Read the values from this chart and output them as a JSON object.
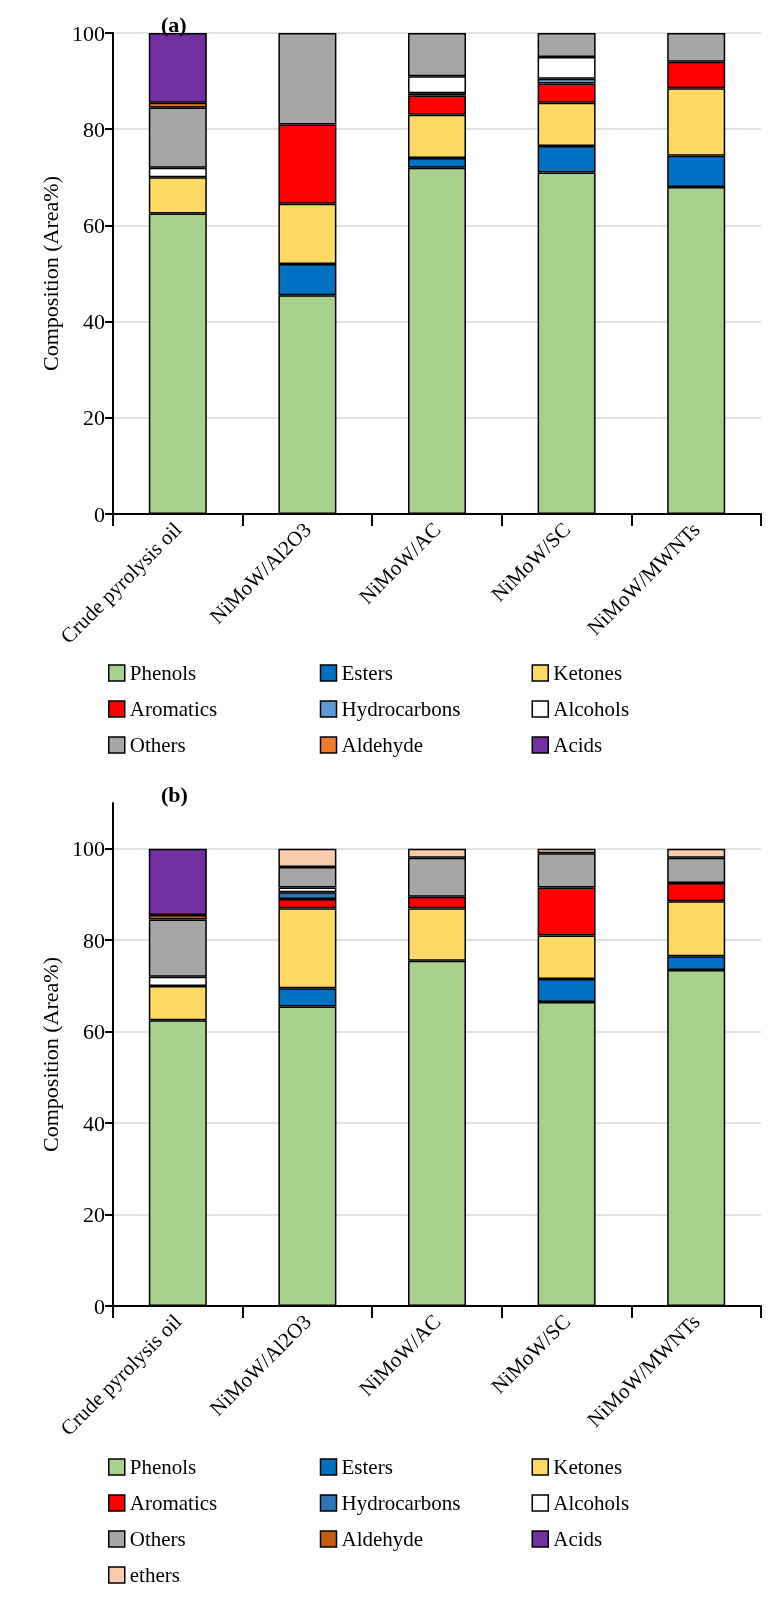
{
  "chart_data": [
    {
      "type": "bar",
      "title": "(a)",
      "ylabel": "Composition (Area%)",
      "categories": [
        "Crude pyrolysis oil",
        "NiMoW/Al2O3",
        "NiMoW/AC",
        "NiMoW/SC",
        "NiMoW/MWNTs"
      ],
      "stacked": true,
      "ylim": [
        0,
        100
      ],
      "yticks": [
        0,
        20,
        40,
        60,
        80,
        100
      ],
      "grid": "y",
      "legend": "bottom",
      "series": [
        {
          "name": "Phenols",
          "color": "#a9d18e",
          "values": [
            62.5,
            45.5,
            72,
            71,
            68
          ]
        },
        {
          "name": "Esters",
          "color": "#0070c0",
          "values": [
            0,
            6.5,
            2,
            5.5,
            6.5
          ]
        },
        {
          "name": "Ketones",
          "color": "#ffd966",
          "values": [
            7.5,
            12.5,
            9,
            9,
            14
          ]
        },
        {
          "name": "Aromatics",
          "color": "#ff0000",
          "values": [
            0,
            16.5,
            4,
            4,
            5.5
          ]
        },
        {
          "name": "Hydrocarbons",
          "color": "#5b9bd5",
          "values": [
            0,
            0,
            0.5,
            1,
            0
          ]
        },
        {
          "name": "Alcohols",
          "color": "#ffffff",
          "values": [
            2,
            0,
            3.5,
            4.5,
            0
          ]
        },
        {
          "name": "Others",
          "color": "#a6a6a6",
          "values": [
            12.5,
            19,
            9,
            5,
            6
          ]
        },
        {
          "name": "Aldehyde",
          "color": "#ed7d31",
          "values": [
            1,
            0,
            0,
            0,
            0
          ]
        },
        {
          "name": "Acids",
          "color": "#7030a0",
          "values": [
            14.5,
            0,
            0,
            0,
            0
          ]
        }
      ]
    },
    {
      "type": "bar",
      "title": "(b)",
      "ylabel": "Composition (Area%)",
      "categories": [
        "Crude pyrolysis oil",
        "NiMoW/Al2O3",
        "NiMoW/AC",
        "NiMoW/SC",
        "NiMoW/MWNTs"
      ],
      "stacked": true,
      "ylim": [
        0,
        110
      ],
      "yticks": [
        0,
        20,
        40,
        60,
        80,
        100
      ],
      "grid": "y",
      "legend": "bottom",
      "series": [
        {
          "name": "Phenols",
          "color": "#a9d18e",
          "values": [
            62.5,
            65.5,
            75.5,
            66.5,
            73.5
          ]
        },
        {
          "name": "Esters",
          "color": "#0070c0",
          "values": [
            0,
            4,
            0,
            5,
            3
          ]
        },
        {
          "name": "Ketones",
          "color": "#ffd966",
          "values": [
            7.5,
            17.5,
            11.5,
            9.5,
            12
          ]
        },
        {
          "name": "Aromatics",
          "color": "#ff0000",
          "values": [
            0,
            2,
            2.5,
            10.5,
            4
          ]
        },
        {
          "name": "Hydrocarbons",
          "color": "#2e75b6",
          "values": [
            0,
            1.5,
            0,
            0,
            0
          ]
        },
        {
          "name": "Alcohols",
          "color": "#ffffff",
          "values": [
            2,
            1,
            0,
            0,
            0
          ]
        },
        {
          "name": "Others",
          "color": "#a6a6a6",
          "values": [
            12.5,
            4.5,
            8.5,
            7.5,
            5.5
          ]
        },
        {
          "name": "Aldehyde",
          "color": "#c55a11",
          "values": [
            1,
            0,
            0,
            0,
            0
          ]
        },
        {
          "name": "Acids",
          "color": "#7030a0",
          "values": [
            14.5,
            0,
            0,
            0,
            0
          ]
        },
        {
          "name": "ethers",
          "color": "#f8cbad",
          "values": [
            0,
            4,
            2,
            1,
            2
          ]
        }
      ]
    }
  ]
}
